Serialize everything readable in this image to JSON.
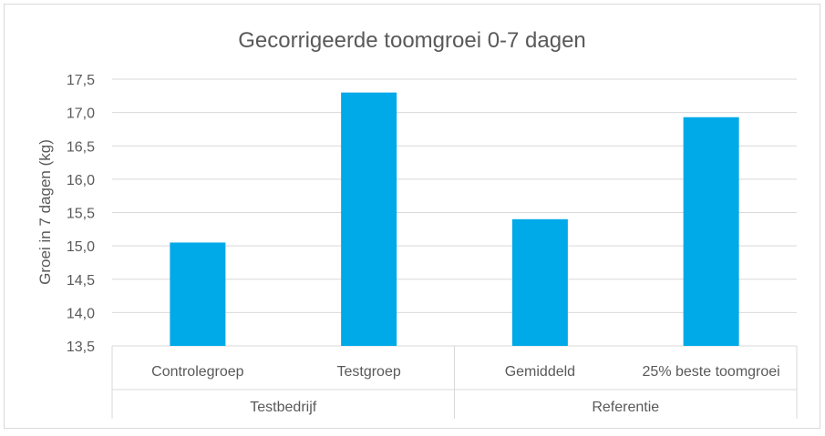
{
  "chart_data": {
    "type": "bar",
    "title": "Gecorrigeerde toomgroei 0-7 dagen",
    "xlabel": "",
    "ylabel": "Groei in 7 dagen (kg)",
    "ylim": [
      13.5,
      17.5
    ],
    "yticks": [
      "13,5",
      "14,0",
      "14,5",
      "15,0",
      "15,5",
      "16,0",
      "16,5",
      "17,0",
      "17,5"
    ],
    "ytick_values": [
      13.5,
      14.0,
      14.5,
      15.0,
      15.5,
      16.0,
      16.5,
      17.0,
      17.5
    ],
    "grid": true,
    "legend": "none",
    "bar_color": "#00a9e8",
    "categories": [
      "Controlegroep",
      "Testgroep",
      "Gemiddeld",
      "25% beste toomgroei"
    ],
    "groups": [
      {
        "label": "Testbedrijf",
        "categories": [
          0,
          1
        ]
      },
      {
        "label": "Referentie",
        "categories": [
          2,
          3
        ]
      }
    ],
    "values": [
      15.05,
      17.3,
      15.4,
      16.93
    ]
  }
}
